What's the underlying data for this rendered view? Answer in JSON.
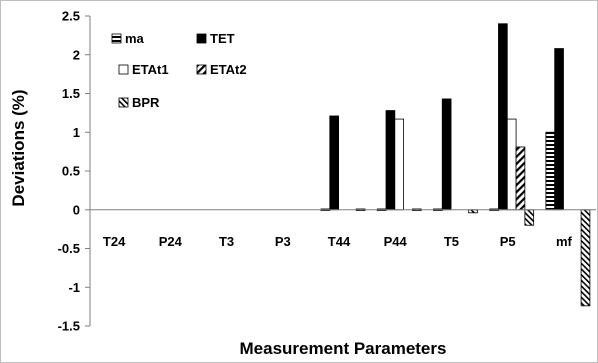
{
  "chart_data": {
    "type": "bar",
    "xlabel": "Measurement Parameters",
    "ylabel": "Deviations (%)",
    "ylim": [
      -1.5,
      2.5
    ],
    "ytick_step": 0.5,
    "yticks": [
      "2.5",
      "2",
      "1.5",
      "1",
      "0.5",
      "0",
      "-0.5",
      "-1",
      "-1.5"
    ],
    "grid": false,
    "legend_position": "top-left",
    "categories": [
      "T24",
      "P24",
      "T3",
      "P3",
      "T44",
      "P44",
      "T5",
      "P5",
      "mf"
    ],
    "series": [
      {
        "name": "ma",
        "pattern": "horizontal-hatch",
        "values": [
          0,
          0,
          0,
          0,
          -0.02,
          -0.02,
          -0.02,
          -0.02,
          1.0
        ]
      },
      {
        "name": "TET",
        "pattern": "solid-black",
        "values": [
          0,
          0,
          0,
          0,
          1.21,
          1.28,
          1.43,
          2.4,
          2.08
        ]
      },
      {
        "name": "ETAt1",
        "pattern": "white",
        "values": [
          0,
          0,
          0,
          0,
          0,
          1.17,
          0,
          1.17,
          0
        ]
      },
      {
        "name": "ETAt2",
        "pattern": "diagonal-hatch",
        "values": [
          0,
          0,
          0,
          0,
          0,
          0,
          0,
          0.81,
          0
        ]
      },
      {
        "name": "BPR",
        "pattern": "dense-diagonal-hatch",
        "values": [
          0,
          0,
          0,
          0,
          -0.02,
          -0.02,
          -0.04,
          -0.2,
          -1.24
        ]
      }
    ]
  }
}
